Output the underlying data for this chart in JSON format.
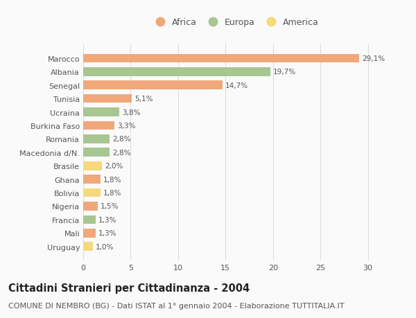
{
  "categories": [
    "Marocco",
    "Albania",
    "Senegal",
    "Tunisia",
    "Ucraina",
    "Burkina Faso",
    "Romania",
    "Macedonia d/N.",
    "Brasile",
    "Ghana",
    "Bolivia",
    "Nigeria",
    "Francia",
    "Mali",
    "Uruguay"
  ],
  "values": [
    29.1,
    19.7,
    14.7,
    5.1,
    3.8,
    3.3,
    2.8,
    2.8,
    2.0,
    1.8,
    1.8,
    1.5,
    1.3,
    1.3,
    1.0
  ],
  "labels": [
    "29,1%",
    "19,7%",
    "14,7%",
    "5,1%",
    "3,8%",
    "3,3%",
    "2,8%",
    "2,8%",
    "2,0%",
    "1,8%",
    "1,8%",
    "1,5%",
    "1,3%",
    "1,3%",
    "1,0%"
  ],
  "continents": [
    "Africa",
    "Europa",
    "Africa",
    "Africa",
    "Europa",
    "Africa",
    "Europa",
    "Europa",
    "America",
    "Africa",
    "America",
    "Africa",
    "Europa",
    "Africa",
    "America"
  ],
  "colors": {
    "Africa": "#F0A87A",
    "Europa": "#A8C68F",
    "America": "#F5D97A"
  },
  "legend_labels": [
    "Africa",
    "Europa",
    "America"
  ],
  "title": "Cittadini Stranieri per Cittadinanza - 2004",
  "subtitle": "COMUNE DI NEMBRO (BG) - Dati ISTAT al 1° gennaio 2004 - Elaborazione TUTTITALIA.IT",
  "xlim": [
    0,
    32
  ],
  "xticks": [
    0,
    5,
    10,
    15,
    20,
    25,
    30
  ],
  "background_color": "#FAFAFA",
  "grid_color": "#DDDDDD",
  "bar_height": 0.65,
  "title_fontsize": 10.5,
  "subtitle_fontsize": 8,
  "label_fontsize": 7.5,
  "tick_fontsize": 8,
  "legend_fontsize": 9
}
